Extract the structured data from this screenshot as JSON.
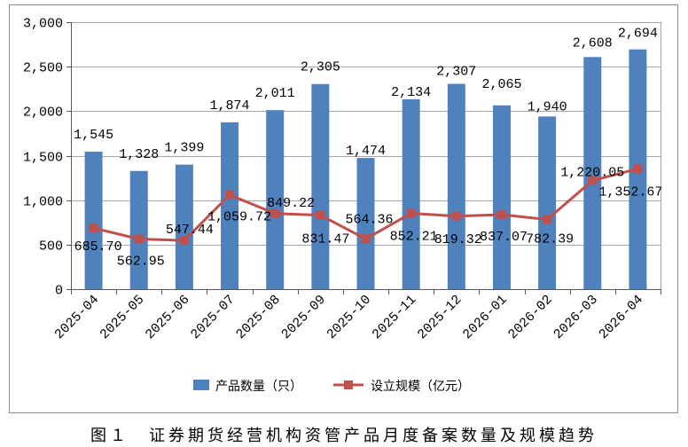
{
  "chart_data": {
    "type": "bar",
    "categories": [
      "2025-04",
      "2025-05",
      "2025-06",
      "2025-07",
      "2025-08",
      "2025-09",
      "2025-10",
      "2025-11",
      "2025-12",
      "2026-01",
      "2026-02",
      "2026-03",
      "2026-04"
    ],
    "series": [
      {
        "name": "产品数量（只）",
        "type": "bar",
        "color": "#4f81bd",
        "values": [
          1545,
          1328,
          1399,
          1874,
          2011,
          2305,
          1474,
          2134,
          2307,
          2065,
          1940,
          2608,
          2694
        ],
        "labels": [
          "1,545",
          "1,328",
          "1,399",
          "1,874",
          "2,011",
          "2,305",
          "1,474",
          "2,134",
          "2,307",
          "2,065",
          "1,940",
          "2,608",
          "2,694"
        ]
      },
      {
        "name": "设立规模（亿元）",
        "type": "line",
        "color": "#c0504d",
        "values": [
          685.7,
          562.95,
          547.44,
          1059.72,
          849.22,
          831.47,
          564.36,
          852.21,
          819.32,
          837.07,
          782.39,
          1220.05,
          1352.67
        ],
        "labels": [
          "685.70",
          "562.95",
          "547.44",
          "1,059.72",
          "849.22",
          "831.47",
          "564.36",
          "852.21",
          "819.32",
          "837.07",
          "782.39",
          "1,220.05",
          "1,352.67"
        ]
      }
    ],
    "yaxis": {
      "min": 0,
      "max": 3000,
      "ticks": [
        0,
        500,
        1000,
        1500,
        2000,
        2500,
        3000
      ],
      "tick_labels": [
        "0",
        "500",
        "1,000",
        "1,500",
        "2,000",
        "2,500",
        "3,000"
      ]
    },
    "grid": true,
    "legend": "bottom"
  },
  "caption": "图１　证券期货经营机构资管产品月度备案数量及规模趋势"
}
